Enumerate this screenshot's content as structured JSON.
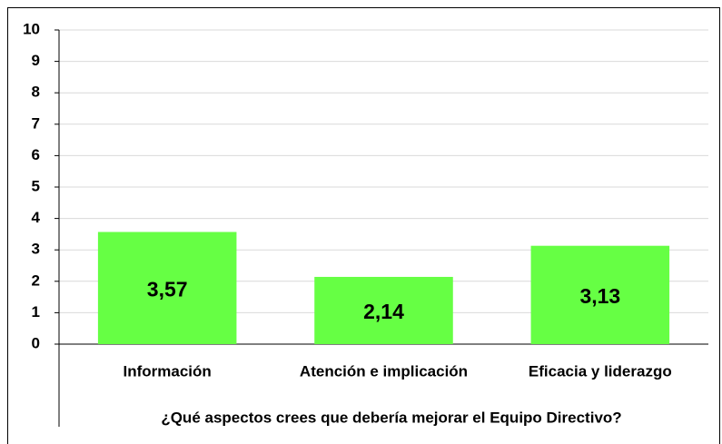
{
  "chart_data": {
    "type": "bar",
    "xlabel": "¿Qué aspectos crees que debería mejorar el Equipo Directivo?",
    "categories": [
      "Información",
      "Atención e implicación",
      "Eficacia y liderazgo"
    ],
    "values": [
      3.57,
      2.14,
      3.13
    ],
    "value_labels": [
      "3,57",
      "2,14",
      "3,13"
    ],
    "color": "#66ff44",
    "ylim": [
      0,
      10
    ],
    "yticks": [
      0,
      1,
      2,
      3,
      4,
      5,
      6,
      7,
      8,
      9,
      10
    ],
    "grid": true
  }
}
